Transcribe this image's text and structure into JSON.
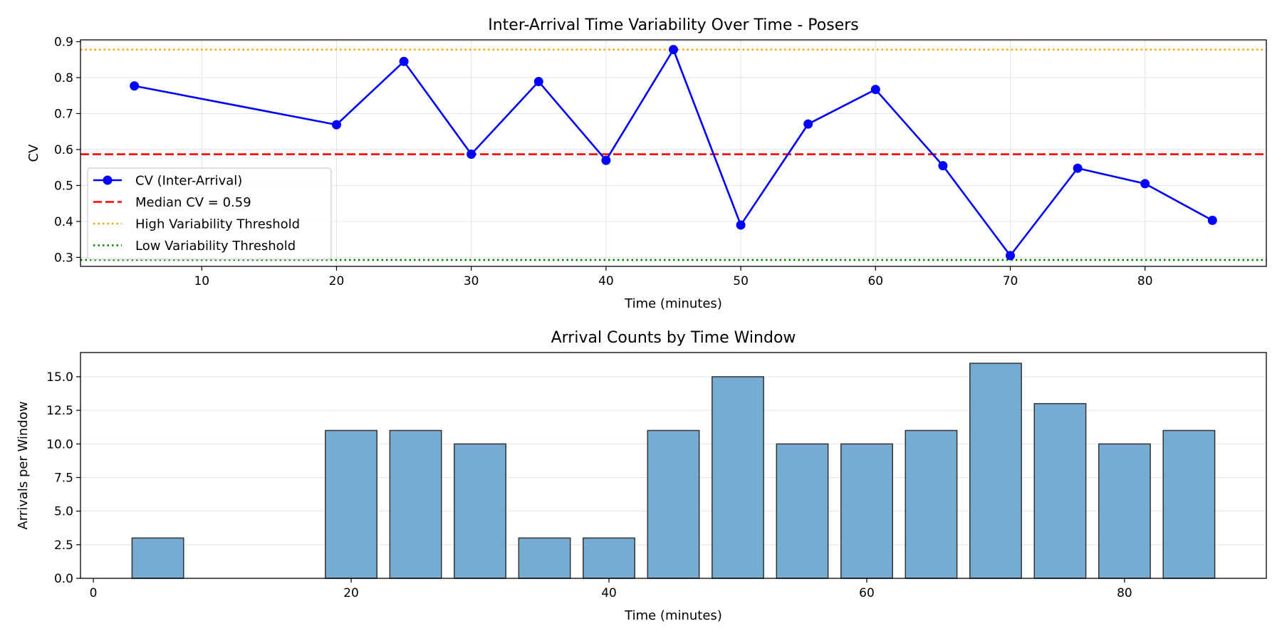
{
  "chart_data": [
    {
      "type": "line",
      "title": "Inter-Arrival Time Variability Over Time - Posers",
      "xlabel": "Time (minutes)",
      "ylabel": "CV",
      "xlim": [
        1,
        89
      ],
      "ylim": [
        0.275,
        0.905
      ],
      "xticks": [
        10,
        20,
        30,
        40,
        50,
        60,
        70,
        80
      ],
      "yticks": [
        0.3,
        0.4,
        0.5,
        0.6,
        0.7,
        0.8,
        0.9
      ],
      "grid": true,
      "legend_position": "lower-left",
      "x": [
        5,
        20,
        25,
        30,
        35,
        40,
        45,
        50,
        55,
        60,
        65,
        70,
        75,
        80,
        85
      ],
      "series": [
        {
          "name": "CV (Inter-Arrival)",
          "color": "#0000ff",
          "style": "solid-marker",
          "values": [
            0.777,
            0.669,
            0.845,
            0.587,
            0.789,
            0.57,
            0.878,
            0.39,
            0.671,
            0.767,
            0.555,
            0.305,
            0.548,
            0.505,
            0.403
          ]
        }
      ],
      "reference_lines": [
        {
          "name": "Median CV = 0.59",
          "value": 0.587,
          "color": "#ff0000",
          "style": "dashed"
        },
        {
          "name": "High Variability Threshold",
          "value": 0.878,
          "color": "#ffa500",
          "style": "dotted"
        },
        {
          "name": "Low Variability Threshold",
          "value": 0.293,
          "color": "#008000",
          "style": "dotted"
        }
      ]
    },
    {
      "type": "bar",
      "title": "Arrival Counts by Time Window",
      "xlabel": "Time (minutes)",
      "ylabel": "Arrivals per Window",
      "xlim": [
        -1,
        91
      ],
      "ylim": [
        0,
        16.8
      ],
      "xticks": [
        0,
        20,
        40,
        60,
        80
      ],
      "yticks": [
        0.0,
        2.5,
        5.0,
        7.5,
        10.0,
        12.5,
        15.0
      ],
      "grid": true,
      "bar_width": 4,
      "color": "#77acd2",
      "edge_color": "#333333",
      "x": [
        5,
        10,
        15,
        20,
        25,
        30,
        35,
        40,
        45,
        50,
        55,
        60,
        65,
        70,
        75,
        80,
        85
      ],
      "values": [
        3,
        0,
        0,
        11,
        11,
        10,
        3,
        3,
        11,
        15,
        10,
        10,
        11,
        16,
        13,
        10,
        11
      ]
    }
  ]
}
